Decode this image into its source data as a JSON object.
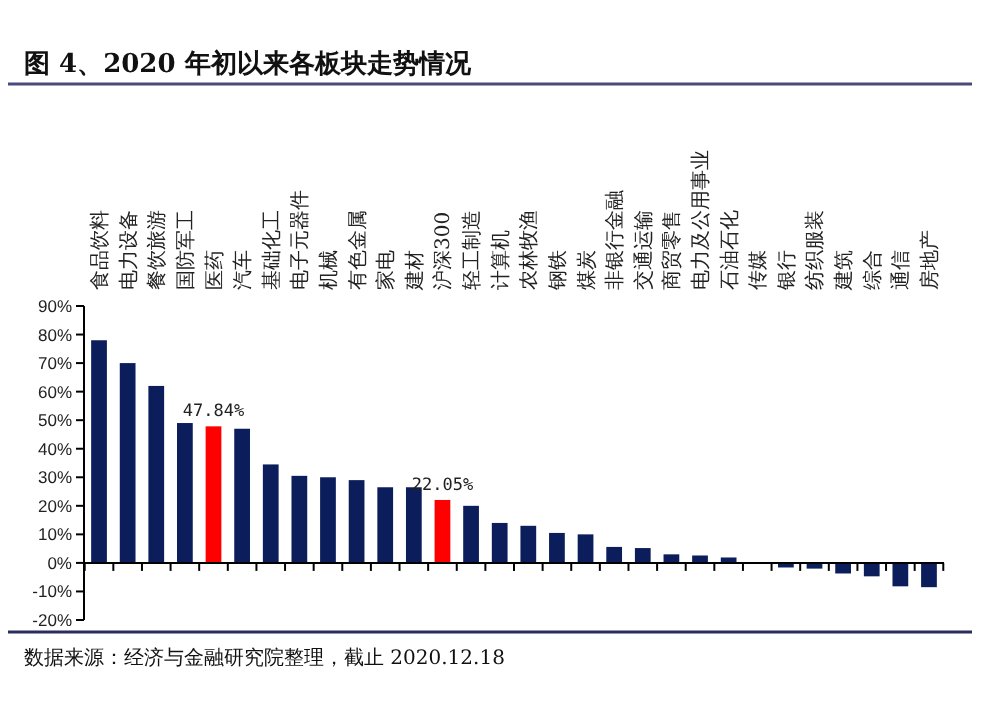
{
  "chart_data": {
    "type": "bar",
    "title": "图 4、2020 年初以来各板块走势情况",
    "categories": [
      "食品饮料",
      "电力设备",
      "餐饮旅游",
      "国防军工",
      "医药",
      "汽车",
      "基础化工",
      "电子元器件",
      "机械",
      "有色金属",
      "家电",
      "建材",
      "沪深300",
      "轻工制造",
      "计算机",
      "农林牧渔",
      "钢铁",
      "煤炭",
      "非银行金融",
      "交通运输",
      "商贸零售",
      "电力及公用事业",
      "石油石化",
      "传媒",
      "银行",
      "纺织服装",
      "建筑",
      "综合",
      "通信",
      "房地产"
    ],
    "values": [
      78,
      70,
      62,
      49,
      47.84,
      47,
      34.5,
      30.5,
      30,
      29,
      26.5,
      26.5,
      22.05,
      20,
      14,
      13,
      10.5,
      10,
      5.6,
      5.2,
      3,
      2.6,
      1.9,
      0.3,
      -1.6,
      -2,
      -3.7,
      -4.7,
      -8.2,
      -8.5
    ],
    "colors": [
      "#0b1d5a",
      "#0b1d5a",
      "#0b1d5a",
      "#0b1d5a",
      "#ff0000",
      "#0b1d5a",
      "#0b1d5a",
      "#0b1d5a",
      "#0b1d5a",
      "#0b1d5a",
      "#0b1d5a",
      "#0b1d5a",
      "#ff0000",
      "#0b1d5a",
      "#0b1d5a",
      "#0b1d5a",
      "#0b1d5a",
      "#0b1d5a",
      "#0b1d5a",
      "#0b1d5a",
      "#0b1d5a",
      "#0b1d5a",
      "#0b1d5a",
      "#0b1d5a",
      "#0b1d5a",
      "#0b1d5a",
      "#0b1d5a",
      "#0b1d5a",
      "#0b1d5a",
      "#0b1d5a"
    ],
    "value_labels": [
      null,
      null,
      null,
      null,
      "47.84%",
      null,
      null,
      null,
      null,
      null,
      null,
      null,
      "22.05%",
      null,
      null,
      null,
      null,
      null,
      null,
      null,
      null,
      null,
      null,
      null,
      null,
      null,
      null,
      null,
      null,
      null
    ],
    "ylim": [
      -20,
      90
    ],
    "yticks": [
      {
        "value": -20,
        "label": "-20%"
      },
      {
        "value": -10,
        "label": "-10%"
      },
      {
        "value": 0,
        "label": "0%"
      },
      {
        "value": 10,
        "label": "10%"
      },
      {
        "value": 20,
        "label": "20%"
      },
      {
        "value": 30,
        "label": "30%"
      },
      {
        "value": 40,
        "label": "40%"
      },
      {
        "value": 50,
        "label": "50%"
      },
      {
        "value": 60,
        "label": "60%"
      },
      {
        "value": 70,
        "label": "70%"
      },
      {
        "value": 80,
        "label": "80%"
      },
      {
        "value": 90,
        "label": "90%"
      }
    ],
    "annotations": [
      "数据来源：经济与金融研究院整理，截止 2020.12.18"
    ]
  }
}
